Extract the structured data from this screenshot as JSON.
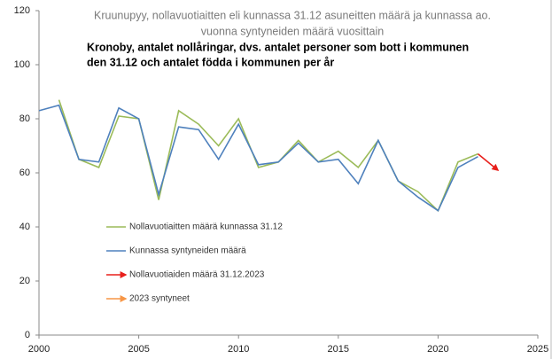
{
  "chart_data": {
    "type": "line",
    "title": [
      "Kruunupyy, nollavuotiaitten eli kunnassa 31.12 asuneitten määrä ja kunnassa ao.",
      "vuonna syntyneiden määrä vuosittain"
    ],
    "subtitle": [
      "Kronoby, antalet nollåringar, dvs. antalet personer som bott i kommunen",
      "den 31.12 och antalet födda i kommunen per år"
    ],
    "x": [
      2000,
      2001,
      2002,
      2003,
      2004,
      2005,
      2006,
      2007,
      2008,
      2009,
      2010,
      2011,
      2012,
      2013,
      2014,
      2015,
      2016,
      2017,
      2018,
      2019,
      2020,
      2021,
      2022,
      2023
    ],
    "series": [
      {
        "name": "Nollavuotiaitten määrä kunnassa 31.12",
        "color": "#9bbb59",
        "values": [
          null,
          87,
          65,
          62,
          81,
          80,
          50,
          83,
          78,
          70,
          80,
          62,
          64,
          72,
          64,
          68,
          62,
          72,
          57,
          53,
          46,
          64,
          67,
          null
        ]
      },
      {
        "name": "Kunnassa syntyneiden määrä",
        "color": "#4f81bd",
        "values": [
          83,
          85,
          65,
          64,
          84,
          80,
          52,
          77,
          76,
          65,
          78,
          63,
          64,
          71,
          64,
          65,
          56,
          72,
          57,
          51,
          46,
          62,
          66,
          null
        ]
      },
      {
        "name": "Nollavuotiaiden määrä 31.12.2023",
        "color": "#e8201c",
        "arrow": true,
        "values": [
          null,
          null,
          null,
          null,
          null,
          null,
          null,
          null,
          null,
          null,
          null,
          null,
          null,
          null,
          null,
          null,
          null,
          null,
          null,
          null,
          null,
          null,
          67,
          61
        ]
      },
      {
        "name": "2023 syntyneet",
        "color": "#f79646",
        "arrow": true,
        "values": [
          null,
          null,
          null,
          null,
          null,
          null,
          null,
          null,
          null,
          null,
          null,
          null,
          null,
          null,
          null,
          null,
          null,
          null,
          null,
          null,
          null,
          null,
          null,
          null
        ]
      }
    ],
    "xlim": [
      2000,
      2025
    ],
    "xticks": [
      2000,
      2005,
      2010,
      2015,
      2020,
      2025
    ],
    "ylim": [
      0,
      120
    ],
    "yticks": [
      0,
      20,
      40,
      60,
      80,
      100,
      120
    ]
  }
}
